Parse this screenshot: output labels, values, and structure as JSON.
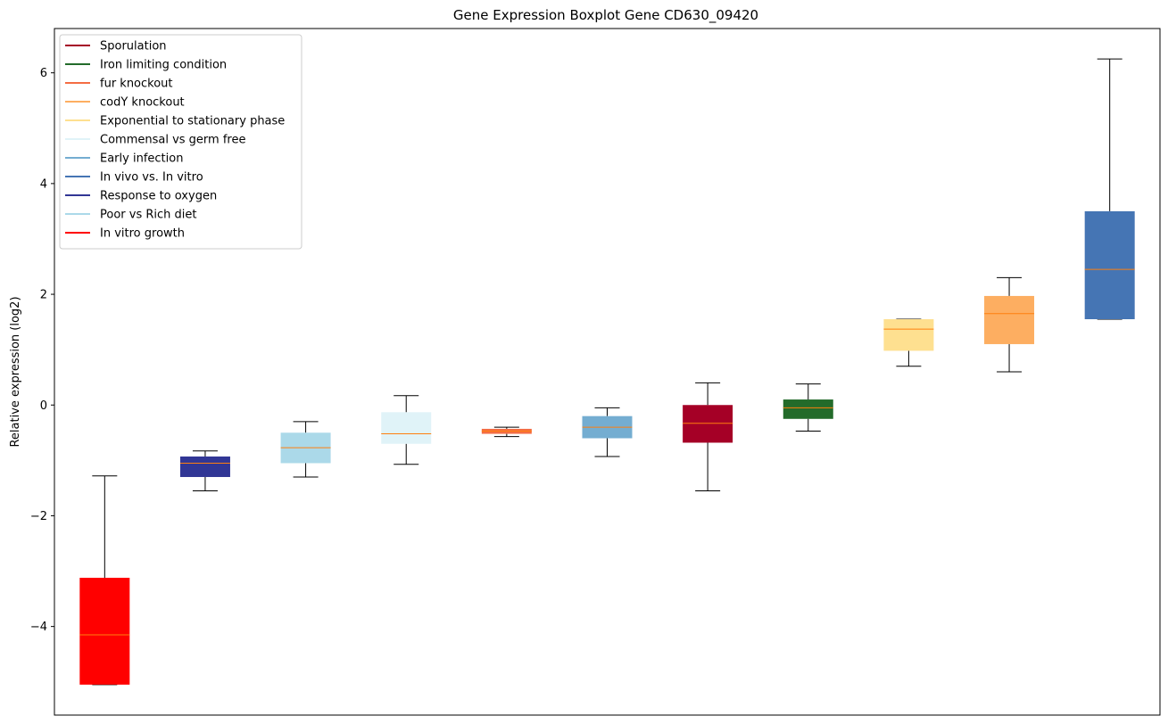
{
  "chart_data": {
    "type": "boxplot",
    "title": "Gene Expression Boxplot Gene CD630_09420",
    "xlabel": "",
    "ylabel": "Relative expression (log2)",
    "ylim": [
      -5.6,
      6.8
    ],
    "yticks": [
      -4,
      -2,
      0,
      2,
      4,
      6
    ],
    "ytick_labels": [
      "−4",
      "−2",
      "0",
      "2",
      "4",
      "6"
    ],
    "grid": false,
    "legend_position": "top-left",
    "median_color": "#ff7f0e",
    "legend": [
      {
        "name": "Sporulation",
        "color": "#a50026"
      },
      {
        "name": "Iron limiting condition",
        "color": "#236b2a"
      },
      {
        "name": "fur knockout",
        "color": "#f46d43"
      },
      {
        "name": "codY knockout",
        "color": "#fdae61"
      },
      {
        "name": "Exponential to stationary phase",
        "color": "#fee090"
      },
      {
        "name": "Commensal vs germ free",
        "color": "#e0f3f8"
      },
      {
        "name": "Early infection",
        "color": "#74add1"
      },
      {
        "name": "In vivo vs. In vitro",
        "color": "#4575b4"
      },
      {
        "name": "Response to oxygen",
        "color": "#313695"
      },
      {
        "name": "Poor vs Rich diet",
        "color": "#abd9e9"
      },
      {
        "name": "In vitro growth",
        "color": "#ff0000"
      }
    ],
    "boxes": [
      {
        "condition": "In vitro growth",
        "color": "#ff0000",
        "whisker_low": -5.05,
        "q1": -5.05,
        "median": -4.15,
        "q3": -3.12,
        "whisker_high": -1.28
      },
      {
        "condition": "Response to oxygen",
        "color": "#313695",
        "whisker_low": -1.55,
        "q1": -1.3,
        "median": -1.05,
        "q3": -0.93,
        "whisker_high": -0.83
      },
      {
        "condition": "Poor vs Rich diet",
        "color": "#abd9e9",
        "whisker_low": -1.3,
        "q1": -1.05,
        "median": -0.77,
        "q3": -0.5,
        "whisker_high": -0.3
      },
      {
        "condition": "Commensal vs germ free",
        "color": "#e0f3f8",
        "whisker_low": -1.07,
        "q1": -0.7,
        "median": -0.52,
        "q3": -0.13,
        "whisker_high": 0.17
      },
      {
        "condition": "fur knockout",
        "color": "#f46d43",
        "whisker_low": -0.57,
        "q1": -0.52,
        "median": -0.47,
        "q3": -0.43,
        "whisker_high": -0.4
      },
      {
        "condition": "Early infection",
        "color": "#74add1",
        "whisker_low": -0.93,
        "q1": -0.6,
        "median": -0.4,
        "q3": -0.2,
        "whisker_high": -0.05
      },
      {
        "condition": "Sporulation",
        "color": "#a50026",
        "whisker_low": -1.55,
        "q1": -0.68,
        "median": -0.33,
        "q3": 0.0,
        "whisker_high": 0.4
      },
      {
        "condition": "Iron limiting condition",
        "color": "#236b2a",
        "whisker_low": -0.47,
        "q1": -0.25,
        "median": -0.05,
        "q3": 0.1,
        "whisker_high": 0.38
      },
      {
        "condition": "Exponential to stationary phase",
        "color": "#fee090",
        "whisker_low": 0.7,
        "q1": 0.98,
        "median": 1.37,
        "q3": 1.55,
        "whisker_high": 1.55
      },
      {
        "condition": "codY knockout",
        "color": "#fdae61",
        "whisker_low": 0.6,
        "q1": 1.1,
        "median": 1.65,
        "q3": 1.97,
        "whisker_high": 2.3
      },
      {
        "condition": "In vivo vs. In vitro",
        "color": "#4575b4",
        "whisker_low": 1.55,
        "q1": 1.55,
        "median": 2.45,
        "q3": 3.5,
        "whisker_high": 6.25
      }
    ]
  }
}
